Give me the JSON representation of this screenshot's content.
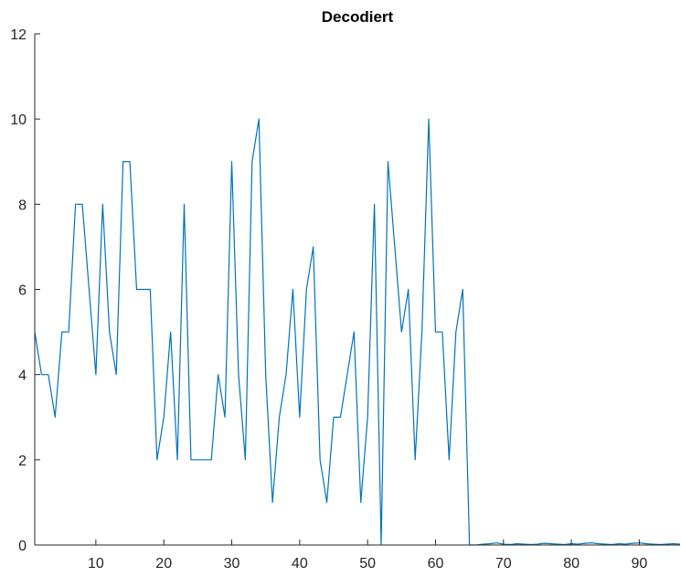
{
  "chart_data": {
    "type": "line",
    "title": "Decodiert",
    "xlabel": "",
    "ylabel": "",
    "xlim": [
      1,
      96
    ],
    "ylim": [
      0,
      12
    ],
    "xticks": [
      10,
      20,
      30,
      40,
      50,
      60,
      70,
      80,
      90
    ],
    "yticks": [
      0,
      2,
      4,
      6,
      8,
      10,
      12
    ],
    "grid": false,
    "series": [
      {
        "color": "#0072BD",
        "x": [
          1,
          2,
          3,
          4,
          5,
          6,
          7,
          8,
          9,
          10,
          11,
          12,
          13,
          14,
          15,
          16,
          17,
          18,
          19,
          20,
          21,
          22,
          23,
          24,
          25,
          26,
          27,
          28,
          29,
          30,
          31,
          32,
          33,
          34,
          35,
          36,
          37,
          38,
          39,
          40,
          41,
          42,
          43,
          44,
          45,
          46,
          47,
          48,
          49,
          50,
          51,
          52,
          53,
          54,
          55,
          56,
          57,
          58,
          59,
          60,
          61,
          62,
          63,
          64,
          65,
          66,
          67,
          68,
          69,
          70,
          71,
          72,
          73,
          74,
          75,
          76,
          77,
          78,
          79,
          80,
          81,
          82,
          83,
          84,
          85,
          86,
          87,
          88,
          89,
          90,
          91,
          92,
          93,
          94,
          95,
          96
        ],
        "values": [
          5.0,
          4.0,
          4.0,
          3.0,
          5.0,
          5.0,
          8.0,
          8.0,
          6.0,
          4.0,
          8.0,
          5.0,
          4.0,
          9.0,
          9.0,
          6.0,
          6.0,
          6.0,
          2.0,
          3.0,
          5.0,
          2.0,
          8.0,
          2.0,
          2.0,
          2.0,
          2.0,
          4.0,
          3.0,
          9.0,
          4.0,
          2.0,
          9.0,
          10.0,
          4.0,
          1.0,
          3.0,
          4.0,
          6.0,
          3.0,
          6.0,
          7.0,
          2.0,
          1.0,
          3.0,
          3.0,
          4.0,
          5.0,
          1.0,
          3.0,
          8.0,
          0.0,
          9.0,
          7.0,
          5.0,
          6.0,
          2.0,
          5.0,
          10.0,
          5.0,
          5.0,
          2.0,
          5.0,
          6.0,
          0.0,
          0.0,
          0.02,
          0.03,
          0.05,
          0.02,
          0.01,
          0.03,
          0.02,
          0.01,
          0.02,
          0.04,
          0.03,
          0.02,
          0.01,
          0.03,
          0.02,
          0.04,
          0.05,
          0.03,
          0.02,
          0.01,
          0.03,
          0.02,
          0.04,
          0.05,
          0.03,
          0.02,
          0.01,
          0.02,
          0.03,
          0.02
        ]
      }
    ]
  }
}
